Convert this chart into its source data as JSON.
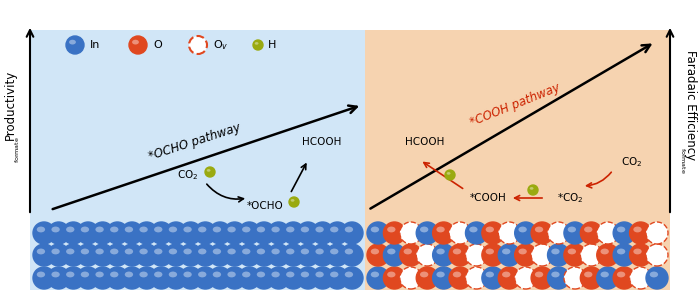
{
  "fig_width": 7.0,
  "fig_height": 2.9,
  "dpi": 100,
  "bg_left_color": "#cce4f7",
  "bg_right_color": "#f5cfa8",
  "In_color": "#3a72c4",
  "O_color": "#e04820",
  "Ov_edge_color": "#e04820",
  "H_color": "#9aaa10",
  "ocho_pathway_label": "*OCHO pathway",
  "cooh_pathway_label": "*COOH pathway",
  "ylabel_left": "Productivity",
  "ylabel_left_sub": "formate",
  "ylabel_right": "Faradaic Efficiency",
  "ylabel_right_sub": "formate"
}
